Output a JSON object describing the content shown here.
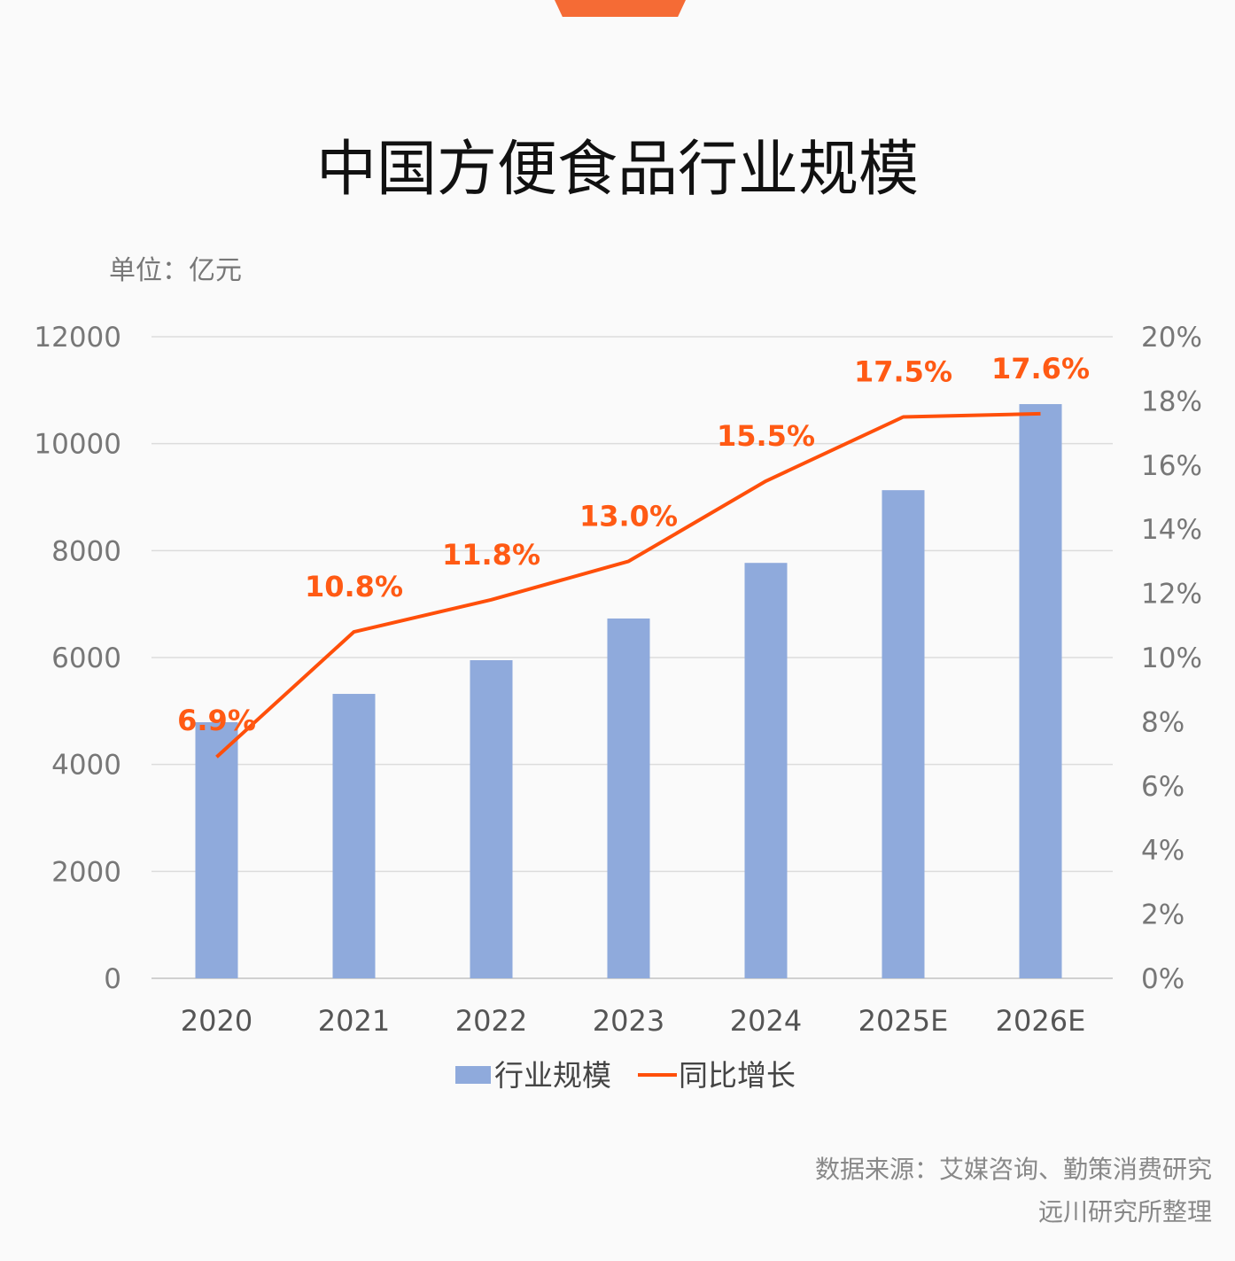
{
  "title": "中国方便食品行业规模",
  "unit_label": "单位：亿元",
  "source_line1": "数据来源：艾媒咨询、勤策消费研究",
  "source_line2": "远川研究所整理",
  "colors": {
    "bar": "#8faadc",
    "line": "#ff4f0a",
    "label": "#ff5a14",
    "accent_tab": "#f56b35"
  },
  "chart_data": {
    "type": "bar+line",
    "title": "中国方便食品行业规模",
    "categories": [
      "2020",
      "2021",
      "2022",
      "2023",
      "2024",
      "2025E",
      "2026E"
    ],
    "series": [
      {
        "name": "行业规模",
        "type": "bar",
        "axis": "left",
        "values": [
          4790,
          5320,
          5950,
          6730,
          7770,
          9130,
          10740
        ]
      },
      {
        "name": "同比增长",
        "type": "line",
        "axis": "right",
        "values": [
          6.9,
          10.8,
          11.8,
          13.0,
          15.5,
          17.5,
          17.6
        ],
        "labels": [
          "6.9%",
          "10.8%",
          "11.8%",
          "13.0%",
          "15.5%",
          "17.5%",
          "17.6%"
        ]
      }
    ],
    "left_axis": {
      "range": [
        0,
        12000
      ],
      "ticks": [
        "0",
        "2000",
        "4000",
        "6000",
        "8000",
        "10000",
        "12000"
      ]
    },
    "right_axis": {
      "range": [
        0,
        20
      ],
      "ticks": [
        "0%",
        "2%",
        "4%",
        "6%",
        "8%",
        "10%",
        "12%",
        "14%",
        "16%",
        "18%",
        "20%"
      ]
    },
    "grid": true,
    "legend_placement": "bottom"
  }
}
